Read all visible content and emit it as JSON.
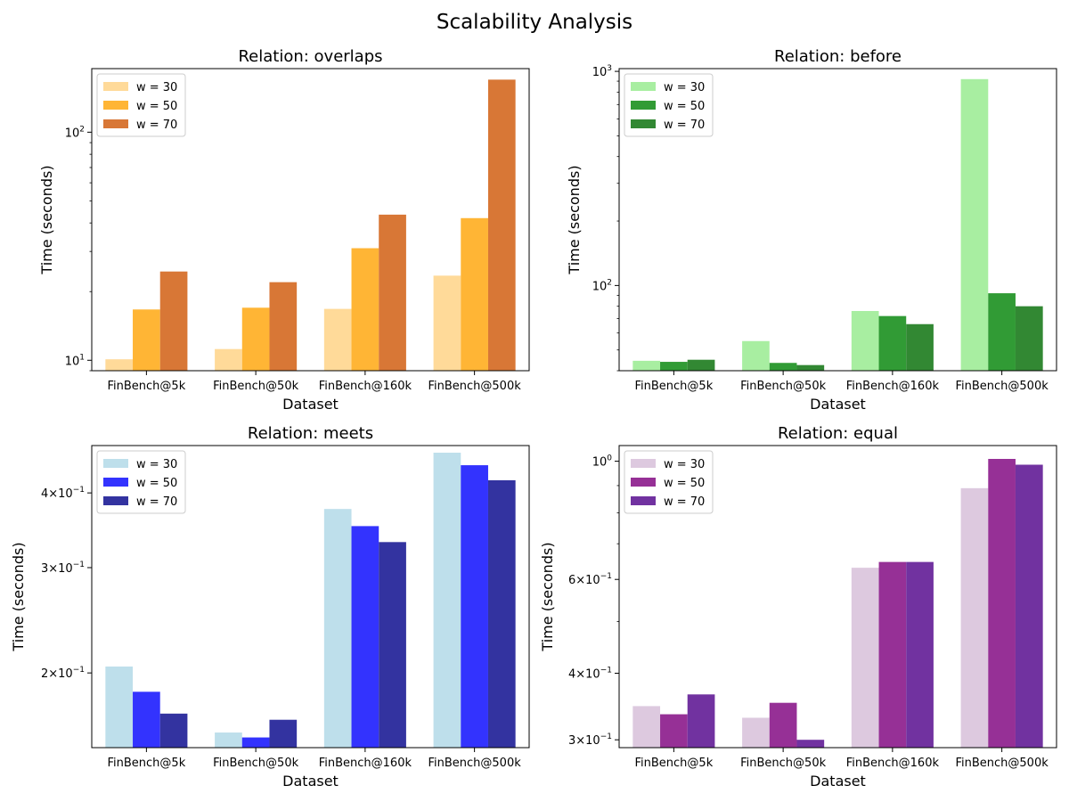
{
  "figure": {
    "title": "Scalability Analysis"
  },
  "chart_data": [
    {
      "type": "bar",
      "title": "Relation: overlaps",
      "xlabel": "Dataset",
      "ylabel": "Time (seconds)",
      "yscale": "log",
      "ylim": [
        9,
        190
      ],
      "yticks": [
        {
          "value": 10,
          "label": "10",
          "exp": "1"
        },
        {
          "value": 100,
          "label": "10",
          "exp": "2"
        }
      ],
      "legend": "top-left",
      "categories": [
        "FinBench@5k",
        "FinBench@50k",
        "FinBench@160k",
        "FinBench@500k"
      ],
      "series": [
        {
          "name": "w = 30",
          "color": "#FFDA99",
          "values": [
            10.1,
            11.2,
            16.8,
            23.5
          ]
        },
        {
          "name": "w = 50",
          "color": "#FFB535",
          "values": [
            16.7,
            17.0,
            31.0,
            42.0
          ]
        },
        {
          "name": "w = 70",
          "color": "#D87736",
          "values": [
            24.5,
            22.0,
            43.5,
            170.0
          ]
        }
      ]
    },
    {
      "type": "bar",
      "title": "Relation: before",
      "xlabel": "Dataset",
      "ylabel": "Time (seconds)",
      "yscale": "log",
      "ylim": [
        40,
        1030
      ],
      "yticks": [
        {
          "value": 100,
          "label": "10",
          "exp": "2"
        },
        {
          "value": 1000,
          "label": "10",
          "exp": "3"
        }
      ],
      "legend": "top-left",
      "categories": [
        "FinBench@5k",
        "FinBench@50k",
        "FinBench@160k",
        "FinBench@500k"
      ],
      "series": [
        {
          "name": "w = 30",
          "color": "#A8EEA1",
          "values": [
            44.5,
            55.0,
            76.0,
            920.0
          ]
        },
        {
          "name": "w = 50",
          "color": "#319B35",
          "values": [
            44.0,
            43.5,
            72.0,
            92.0
          ]
        },
        {
          "name": "w = 70",
          "color": "#328833",
          "values": [
            45.0,
            42.5,
            66.0,
            80.0
          ]
        }
      ]
    },
    {
      "type": "bar",
      "title": "Relation: meets",
      "xlabel": "Dataset",
      "ylabel": "Time (seconds)",
      "yscale": "log",
      "ylim": [
        0.15,
        0.48
      ],
      "yticks": [
        {
          "value": 0.2,
          "label": "2×10",
          "exp": "−1"
        },
        {
          "value": 0.3,
          "label": "3×10",
          "exp": "−1"
        },
        {
          "value": 0.4,
          "label": "4×10",
          "exp": "−1"
        }
      ],
      "legend": "top-left",
      "categories": [
        "FinBench@5k",
        "FinBench@50k",
        "FinBench@160k",
        "FinBench@500k"
      ],
      "series": [
        {
          "name": "w = 30",
          "color": "#BEDFEB",
          "values": [
            0.205,
            0.159,
            0.376,
            0.467
          ]
        },
        {
          "name": "w = 50",
          "color": "#3333FE",
          "values": [
            0.186,
            0.156,
            0.352,
            0.445
          ]
        },
        {
          "name": "w = 70",
          "color": "#3333A0",
          "values": [
            0.171,
            0.167,
            0.331,
            0.42
          ]
        }
      ]
    },
    {
      "type": "bar",
      "title": "Relation: equal",
      "xlabel": "Dataset",
      "ylabel": "Time (seconds)",
      "yscale": "log",
      "ylim": [
        0.29,
        1.07
      ],
      "yticks": [
        {
          "value": 0.3,
          "label": "3×10",
          "exp": "−1"
        },
        {
          "value": 0.4,
          "label": "4×10",
          "exp": "−1"
        },
        {
          "value": 0.6,
          "label": "6×10",
          "exp": "−1"
        },
        {
          "value": 1.0,
          "label": "10",
          "exp": "0"
        }
      ],
      "legend": "top-left",
      "categories": [
        "FinBench@5k",
        "FinBench@50k",
        "FinBench@160k",
        "FinBench@500k"
      ],
      "series": [
        {
          "name": "w = 30",
          "color": "#DDC9DF",
          "values": [
            0.347,
            0.33,
            0.631,
            0.89
          ]
        },
        {
          "name": "w = 50",
          "color": "#963096",
          "values": [
            0.335,
            0.352,
            0.647,
            1.01
          ]
        },
        {
          "name": "w = 70",
          "color": "#7132A0",
          "values": [
            0.365,
            0.3,
            0.647,
            0.985
          ]
        }
      ]
    }
  ]
}
